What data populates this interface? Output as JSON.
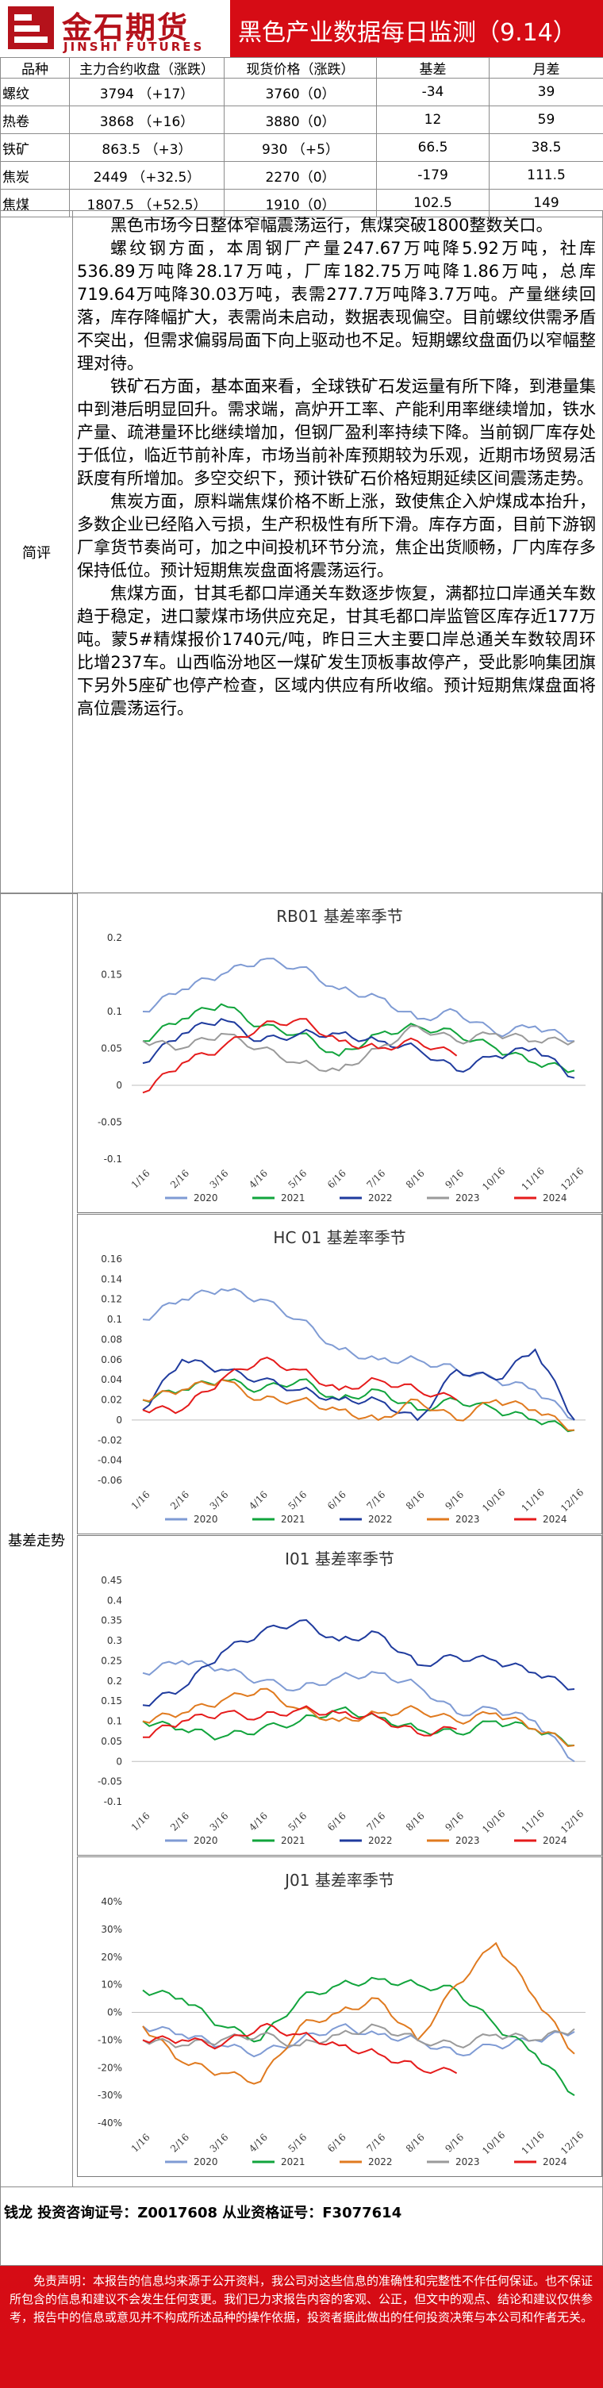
{
  "header": {
    "brand_cn": "金石期货",
    "brand_en": "JINSHI FUTURES",
    "title": "黑色产业数据每日监测（9.14）",
    "logo_icon": "jinshi-logo-icon",
    "accent": "#d60c15"
  },
  "table": {
    "headers": [
      "品种",
      "主力合约收盘（涨跌）",
      "现货价格（涨跌）",
      "基差",
      "月差"
    ],
    "rows": [
      [
        "螺纹",
        "3794 （+17）",
        "3760（0）",
        "-34",
        "39"
      ],
      [
        "热卷",
        "3868 （+16）",
        "3880（0）",
        "12",
        "59"
      ],
      [
        "铁矿",
        "863.5 （+3）",
        "930 （+5）",
        "66.5",
        "38.5"
      ],
      [
        "焦炭",
        "2449 （+32.5）",
        "2270（0）",
        "-179",
        "111.5"
      ],
      [
        "焦煤",
        "1807.5 （+52.5）",
        "1910（0）",
        "102.5",
        "149"
      ]
    ]
  },
  "comment": {
    "label": "简评",
    "paragraphs": [
      "黑色市场今日整体窄幅震荡运行，焦煤突破1800整数关口。",
      "螺纹钢方面，本周钢厂产量247.67万吨降5.92万吨，社库536.89万吨降28.17万吨，厂库182.75万吨降1.86万吨，总库719.64万吨降30.03万吨，表需277.7万吨降3.7万吨。产量继续回落，库存降幅扩大，表需尚未启动，数据表现偏空。目前螺纹供需矛盾不突出，但需求偏弱局面下向上驱动也不足。短期螺纹盘面仍以窄幅整理对待。",
      "铁矿石方面，基本面来看，全球铁矿石发运量有所下降，到港量集中到港后明显回升。需求端，高炉开工率、产能利用率继续增加，铁水产量、疏港量环比继续增加，但钢厂盈利率持续下降。当前钢厂库存处于低位，临近节前补库，市场当前补库预期较为乐观，近期市场贸易活跃度有所增加。多空交织下，预计铁矿石价格短期延续区间震荡走势。",
      "焦炭方面，原料端焦煤价格不断上涨，致使焦企入炉煤成本抬升，多数企业已经陷入亏损，生产积极性有所下滑。库存方面，目前下游钢厂拿货节奏尚可，加之中间投机环节分流，焦企出货顺畅，厂内库存多保持低位。预计短期焦炭盘面将震荡运行。",
      "焦煤方面，甘其毛都口岸通关车数逐步恢复，满都拉口岸通关车数趋于稳定，进口蒙煤市场供应充足，甘其毛都口岸监管区库存近177万吨。蒙5#精煤报价1740元/吨，昨日三大主要口岸总通关车数较周环比增237车。山西临汾地区一煤矿发生顶板事故停产，受此影响集团旗下另外5座矿也停产检查，区域内供应有所收缩。预计短期焦煤盘面将高位震荡运行。"
    ]
  },
  "basis": {
    "label": "基差走势"
  },
  "license": {
    "text": "钱龙 投资咨询证号：Z0017608 从业资格证号：F3077614"
  },
  "disclaimer": {
    "text": "免责声明：本报告的信息均来源于公开资料，我公司对这些信息的准确性和完整性不作任何保证。也不保证所包含的信息和建议不会发生任何变更。我们已力求报告内容的客观、公正，但文中的观点、结论和建议仅供参考，报告中的信息或意见并不构成所述品种的操作依据，投资者据此做出的任何投资决策与本公司和作者无关。"
  },
  "chart_data": [
    {
      "type": "line",
      "title": "RB01 基差率季节",
      "x": [
        "1/16",
        "2/16",
        "3/16",
        "4/16",
        "5/16",
        "6/16",
        "7/16",
        "8/16",
        "9/16",
        "10/16",
        "11/16",
        "12/16"
      ],
      "ylim": [
        -0.1,
        0.2
      ],
      "yticks": [
        "0.2",
        "0.15",
        "0.1",
        "0.05",
        "0",
        "-0.05",
        "-0.1"
      ],
      "legend": "bottom",
      "series": [
        {
          "name": "2020",
          "color": "#7f9bd4",
          "values": [
            0.1,
            0.13,
            0.15,
            0.17,
            0.16,
            0.13,
            0.12,
            0.09,
            0.1,
            0.07,
            0.08,
            0.06
          ]
        },
        {
          "name": "2021",
          "color": "#11a43c",
          "values": [
            0.06,
            0.09,
            0.11,
            0.08,
            0.07,
            0.04,
            0.07,
            0.08,
            0.07,
            0.05,
            0.03,
            0.02
          ]
        },
        {
          "name": "2022",
          "color": "#1f3b9e",
          "values": [
            0.03,
            0.07,
            0.09,
            0.06,
            0.07,
            0.07,
            0.06,
            0.05,
            0.02,
            0.04,
            0.05,
            0.01
          ]
        },
        {
          "name": "2023",
          "color": "#9a9a9a",
          "values": [
            0.06,
            0.05,
            0.07,
            0.05,
            0.03,
            0.02,
            0.05,
            0.08,
            0.06,
            0.07,
            0.06,
            0.06
          ]
        },
        {
          "name": "2024",
          "color": "#e51b1b",
          "values": [
            -0.01,
            0.03,
            0.05,
            0.08,
            0.09,
            0.06,
            0.05,
            0.06,
            0.04,
            null,
            null,
            null
          ]
        }
      ]
    },
    {
      "type": "line",
      "title": "HC 01 基差率季节",
      "x": [
        "1/16",
        "2/16",
        "3/16",
        "4/16",
        "5/16",
        "6/16",
        "7/16",
        "8/16",
        "9/16",
        "10/16",
        "11/16",
        "12/16"
      ],
      "ylim": [
        -0.06,
        0.16
      ],
      "yticks": [
        "0.16",
        "0.14",
        "0.12",
        "0.1",
        "0.08",
        "0.06",
        "0.04",
        "0.02",
        "0",
        "-0.02",
        "-0.04",
        "-0.06"
      ],
      "legend": "bottom",
      "series": [
        {
          "name": "2020",
          "color": "#7f9bd4",
          "values": [
            0.1,
            0.12,
            0.13,
            0.12,
            0.1,
            0.07,
            0.06,
            0.06,
            0.05,
            0.04,
            0.03,
            0.0
          ]
        },
        {
          "name": "2021",
          "color": "#11a43c",
          "values": [
            0.02,
            0.03,
            0.04,
            0.03,
            0.04,
            0.02,
            0.03,
            0.01,
            0.02,
            0.01,
            0.0,
            -0.01
          ]
        },
        {
          "name": "2022",
          "color": "#1f3b9e",
          "values": [
            0.01,
            0.06,
            0.05,
            0.04,
            0.03,
            0.02,
            0.02,
            0.0,
            0.05,
            0.04,
            0.07,
            0.0
          ]
        },
        {
          "name": "2023",
          "color": "#e07a1f",
          "values": [
            0.02,
            0.03,
            0.04,
            0.02,
            0.02,
            0.01,
            0.0,
            0.02,
            0.0,
            0.02,
            0.01,
            -0.01
          ]
        },
        {
          "name": "2024",
          "color": "#e51b1b",
          "values": [
            0.01,
            0.01,
            0.04,
            0.06,
            0.05,
            0.03,
            0.04,
            0.03,
            0.02,
            null,
            null,
            null
          ]
        }
      ]
    },
    {
      "type": "line",
      "title": "I01 基差率季节",
      "x": [
        "1/16",
        "2/16",
        "3/16",
        "4/16",
        "5/16",
        "6/16",
        "7/16",
        "8/16",
        "9/16",
        "10/16",
        "11/16",
        "12/16"
      ],
      "ylim": [
        -0.1,
        0.45
      ],
      "yticks": [
        "0.45",
        "0.4",
        "0.35",
        "0.3",
        "0.25",
        "0.2",
        "0.15",
        "0.1",
        "0.05",
        "0",
        "-0.05",
        "-0.1"
      ],
      "legend": "bottom",
      "series": [
        {
          "name": "2020",
          "color": "#7f9bd4",
          "values": [
            0.22,
            0.25,
            0.23,
            0.2,
            0.18,
            0.21,
            0.22,
            0.19,
            0.12,
            0.13,
            0.1,
            0.0
          ]
        },
        {
          "name": "2021",
          "color": "#11a43c",
          "values": [
            0.1,
            0.08,
            0.06,
            0.08,
            0.1,
            0.13,
            0.11,
            0.08,
            0.07,
            0.1,
            0.08,
            0.04
          ]
        },
        {
          "name": "2022",
          "color": "#1f3b9e",
          "values": [
            0.14,
            0.18,
            0.27,
            0.32,
            0.35,
            0.3,
            0.32,
            0.24,
            0.26,
            0.25,
            0.22,
            0.18
          ]
        },
        {
          "name": "2023",
          "color": "#e07a1f",
          "values": [
            0.1,
            0.12,
            0.15,
            0.18,
            0.13,
            0.1,
            0.12,
            0.13,
            0.1,
            0.12,
            0.08,
            0.04
          ]
        },
        {
          "name": "2024",
          "color": "#e51b1b",
          "values": [
            0.06,
            0.1,
            0.12,
            0.11,
            0.13,
            0.12,
            0.11,
            0.07,
            0.08,
            null,
            null,
            null
          ]
        }
      ]
    },
    {
      "type": "line",
      "title": "J01 基差率季节",
      "x": [
        "1/16",
        "2/16",
        "3/16",
        "4/16",
        "5/16",
        "6/16",
        "7/16",
        "8/16",
        "9/16",
        "10/16",
        "11/16",
        "12/16"
      ],
      "ylim": [
        -0.4,
        0.4
      ],
      "yticks": [
        "40%",
        "30%",
        "20%",
        "10%",
        "0%",
        "-10%",
        "-20%",
        "-30%",
        "-40%"
      ],
      "legend": "bottom",
      "series": [
        {
          "name": "2020",
          "color": "#7f9bd4",
          "values": [
            -0.05,
            -0.08,
            -0.12,
            -0.15,
            -0.1,
            -0.05,
            -0.08,
            -0.1,
            -0.15,
            -0.12,
            -0.1,
            -0.07
          ]
        },
        {
          "name": "2021",
          "color": "#11a43c",
          "values": [
            0.08,
            0.05,
            -0.05,
            -0.1,
            0.05,
            0.1,
            0.12,
            0.1,
            0.08,
            -0.05,
            -0.15,
            -0.3
          ]
        },
        {
          "name": "2022",
          "color": "#e07a1f",
          "values": [
            -0.05,
            -0.18,
            -0.22,
            -0.25,
            -0.05,
            0.0,
            0.05,
            -0.1,
            0.1,
            0.25,
            0.05,
            -0.15
          ]
        },
        {
          "name": "2023",
          "color": "#9a9a9a",
          "values": [
            -0.1,
            -0.12,
            -0.1,
            -0.08,
            -0.12,
            -0.08,
            -0.05,
            -0.1,
            -0.12,
            -0.08,
            -0.1,
            -0.06
          ]
        },
        {
          "name": "2024",
          "color": "#e51b1b",
          "values": [
            -0.1,
            -0.1,
            -0.12,
            -0.05,
            -0.08,
            -0.12,
            -0.15,
            -0.2,
            -0.22,
            null,
            null,
            null
          ]
        }
      ]
    }
  ]
}
